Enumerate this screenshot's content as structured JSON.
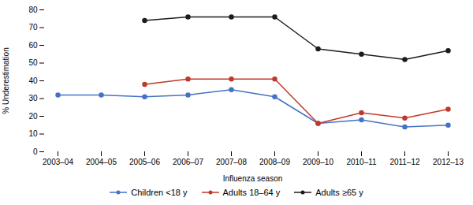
{
  "chart_data": {
    "type": "line",
    "xlabel": "Influenza season",
    "ylabel": "% Underestimation",
    "categories": [
      "2003–04",
      "2004–05",
      "2005–06",
      "2006–07",
      "2007–08",
      "2008–09",
      "2009–10",
      "2010–11",
      "2011–12",
      "2012–13"
    ],
    "series": [
      {
        "name": "Children <18 y",
        "color": "#4472C4",
        "values": [
          32,
          32,
          31,
          32,
          35,
          31,
          16,
          18,
          14,
          15
        ]
      },
      {
        "name": "Adults 18–64 y",
        "color": "#C0392B",
        "values": [
          null,
          null,
          38,
          41,
          41,
          41,
          16,
          22,
          19,
          24
        ]
      },
      {
        "name": "Adults ≥65 y",
        "color": "#1C1C1C",
        "values": [
          null,
          null,
          74,
          76,
          76,
          76,
          58,
          55,
          52,
          57
        ]
      }
    ],
    "ylim": [
      0,
      80
    ],
    "yticks": [
      0,
      10,
      20,
      30,
      40,
      50,
      60,
      70,
      80
    ],
    "marker": "circle",
    "grid": false,
    "legend": "bottom"
  }
}
